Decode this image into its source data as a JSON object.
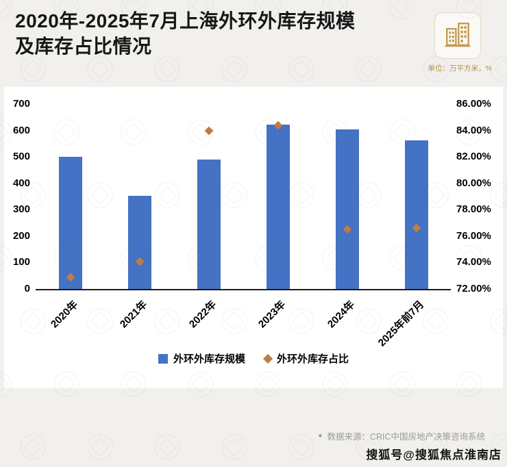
{
  "header": {
    "title_line1": "2020年-2025年7月上海外环外库存规模",
    "title_line2": "及库存占比情况",
    "unit_note": "单位：万平方米，%"
  },
  "chart_data": {
    "type": "bar",
    "title": "2020年-2025年7月上海外环外库存规模及库存占比情况",
    "categories": [
      "2020年",
      "2021年",
      "2022年",
      "2023年",
      "2024年",
      "2025年前7月"
    ],
    "series": [
      {
        "name": "外环外库存规模",
        "type": "bar",
        "axis": "left",
        "values": [
          500,
          352,
          490,
          622,
          605,
          562
        ]
      },
      {
        "name": "外环外库存占比",
        "type": "scatter",
        "axis": "right",
        "values": [
          72.9,
          74.1,
          84.0,
          84.4,
          76.5,
          76.6
        ]
      }
    ],
    "left_axis": {
      "min": 0,
      "max": 700,
      "step": 100
    },
    "right_axis": {
      "min": 72,
      "max": 86,
      "step": 2,
      "format": "percent2"
    },
    "legend_position": "bottom",
    "grid": false,
    "colors": {
      "bar": "#4472c4",
      "marker": "#bf7d45"
    }
  },
  "footer": {
    "source_bullet": "●",
    "source_text": "数据来源：CRIC中国房地产决策咨询系统",
    "watermark": "搜狐号@搜狐焦点淮南店"
  }
}
